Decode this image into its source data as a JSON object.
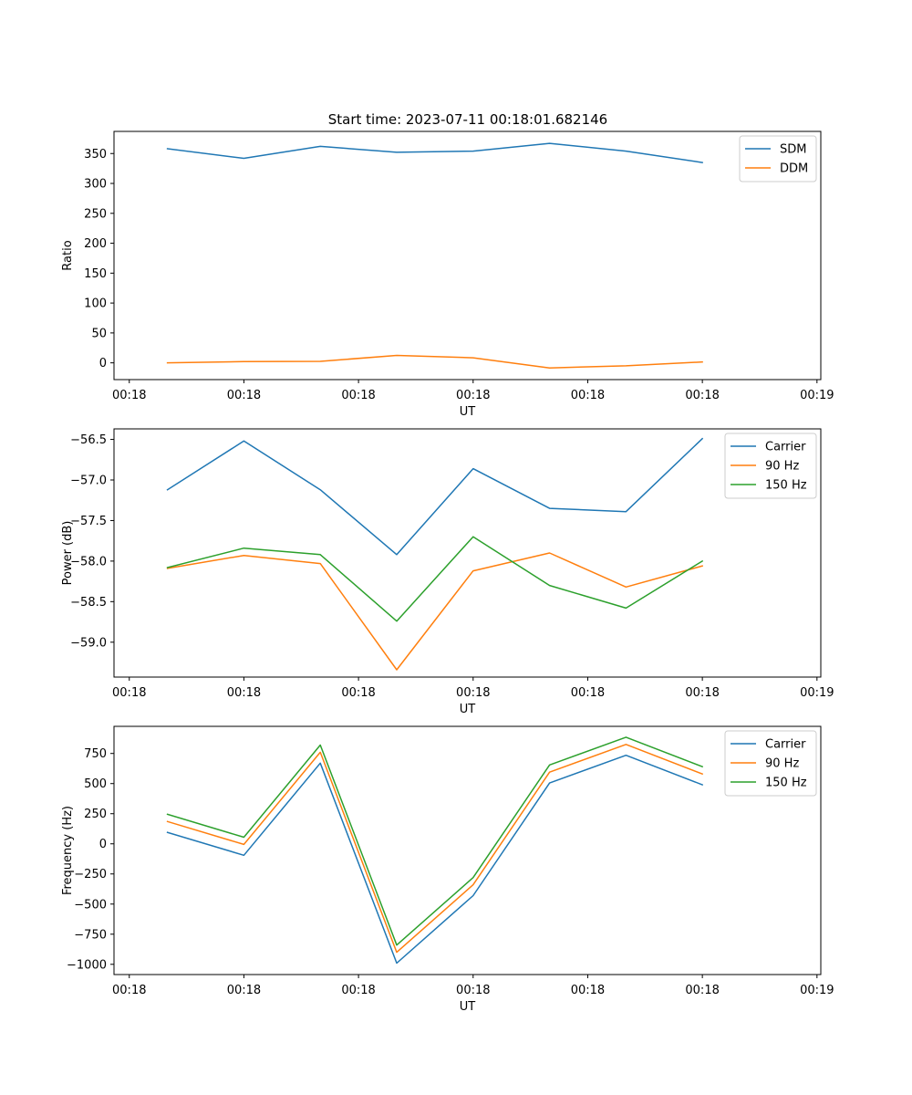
{
  "figure_title": "Start time: 2023-07-11 00:18:01.682146",
  "chart_data": [
    {
      "type": "line",
      "id": "ratio",
      "title": "Start time: 2023-07-11 00:18:01.682146",
      "xlabel": "UT",
      "ylabel": "Ratio",
      "x": [
        1,
        2,
        3,
        4,
        5,
        6,
        7,
        8
      ],
      "xlim": [
        0.3,
        9.55
      ],
      "x_ticks": [
        0.5,
        2,
        3.5,
        5,
        6.5,
        8,
        9.5
      ],
      "x_tick_labels": [
        "00:18",
        "00:18",
        "00:18",
        "00:18",
        "00:18",
        "00:18",
        "00:19"
      ],
      "ylim": [
        -28,
        387
      ],
      "y_ticks": [
        0,
        50,
        100,
        150,
        200,
        250,
        300,
        350
      ],
      "y_tick_labels": [
        "0",
        "50",
        "100",
        "150",
        "200",
        "250",
        "300",
        "350"
      ],
      "legend_position": "top-right",
      "series": [
        {
          "name": "SDM",
          "color": "#1f77b4",
          "values": [
            358,
            342,
            362,
            352,
            354,
            367,
            354,
            335
          ]
        },
        {
          "name": "DDM",
          "color": "#ff7f0e",
          "values": [
            0,
            2,
            2.5,
            12.5,
            8.5,
            -8.5,
            -5,
            1.5
          ]
        }
      ]
    },
    {
      "type": "line",
      "id": "power",
      "title": "",
      "xlabel": "UT",
      "ylabel": "Power (dB)",
      "x": [
        1,
        2,
        3,
        4,
        5,
        6,
        7,
        8
      ],
      "xlim": [
        0.3,
        9.55
      ],
      "x_ticks": [
        0.5,
        2,
        3.5,
        5,
        6.5,
        8,
        9.5
      ],
      "x_tick_labels": [
        "00:18",
        "00:18",
        "00:18",
        "00:18",
        "00:18",
        "00:18",
        "00:19"
      ],
      "ylim": [
        -59.43,
        -56.37
      ],
      "y_ticks": [
        -59.0,
        -58.5,
        -58.0,
        -57.5,
        -57.0,
        -56.5
      ],
      "y_tick_labels": [
        "−59.0",
        "−58.5",
        "−58.0",
        "−57.5",
        "−57.0",
        "−56.5"
      ],
      "legend_position": "top-right",
      "series": [
        {
          "name": "Carrier",
          "color": "#1f77b4",
          "values": [
            -57.12,
            -56.52,
            -57.12,
            -57.92,
            -56.86,
            -57.35,
            -57.39,
            -56.49
          ]
        },
        {
          "name": "90 Hz",
          "color": "#ff7f0e",
          "values": [
            -58.09,
            -57.93,
            -58.03,
            -59.34,
            -58.12,
            -57.9,
            -58.32,
            -58.06
          ]
        },
        {
          "name": "150 Hz",
          "color": "#2ca02c",
          "values": [
            -58.08,
            -57.84,
            -57.92,
            -58.74,
            -57.7,
            -58.3,
            -58.58,
            -58.0
          ]
        }
      ]
    },
    {
      "type": "line",
      "id": "frequency",
      "title": "",
      "xlabel": "UT",
      "ylabel": "Frequency (Hz)",
      "x": [
        1,
        2,
        3,
        4,
        5,
        6,
        7,
        8
      ],
      "xlim": [
        0.3,
        9.55
      ],
      "x_ticks": [
        0.5,
        2,
        3.5,
        5,
        6.5,
        8,
        9.5
      ],
      "x_tick_labels": [
        "00:18",
        "00:18",
        "00:18",
        "00:18",
        "00:18",
        "00:18",
        "00:19"
      ],
      "ylim": [
        -1085,
        975
      ],
      "y_ticks": [
        -1000,
        -750,
        -500,
        -250,
        0,
        250,
        500,
        750
      ],
      "y_tick_labels": [
        "−1000",
        "−750",
        "−500",
        "−250",
        "0",
        "250",
        "500",
        "750"
      ],
      "legend_position": "top-right",
      "series": [
        {
          "name": "Carrier",
          "color": "#1f77b4",
          "values": [
            95,
            -95,
            670,
            -990,
            -430,
            505,
            735,
            490
          ]
        },
        {
          "name": "90 Hz",
          "color": "#ff7f0e",
          "values": [
            185,
            -5,
            760,
            -900,
            -340,
            595,
            825,
            580
          ]
        },
        {
          "name": "150 Hz",
          "color": "#2ca02c",
          "values": [
            245,
            55,
            820,
            -840,
            -280,
            655,
            885,
            640
          ]
        }
      ]
    }
  ]
}
